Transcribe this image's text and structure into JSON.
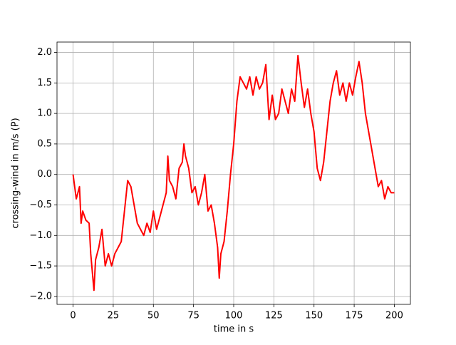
{
  "chart_data": {
    "type": "line",
    "xlabel": "time in s",
    "ylabel": "crossing-wind in m/s (P)",
    "x": [
      0,
      2,
      4,
      5,
      6,
      8,
      10,
      11,
      12,
      13,
      14,
      16,
      18,
      20,
      22,
      24,
      26,
      28,
      30,
      32,
      34,
      36,
      38,
      40,
      42,
      44,
      46,
      48,
      50,
      52,
      54,
      56,
      58,
      59,
      60,
      62,
      64,
      66,
      68,
      69,
      70,
      72,
      74,
      76,
      78,
      80,
      82,
      84,
      86,
      88,
      90,
      91,
      92,
      94,
      96,
      98,
      100,
      102,
      104,
      106,
      108,
      110,
      112,
      114,
      116,
      118,
      120,
      122,
      124,
      126,
      128,
      130,
      132,
      134,
      136,
      138,
      140,
      142,
      144,
      146,
      148,
      150,
      152,
      154,
      156,
      158,
      160,
      162,
      164,
      166,
      168,
      170,
      172,
      174,
      176,
      178,
      180,
      182,
      184,
      186,
      188,
      190,
      192,
      194,
      196,
      198,
      200
    ],
    "series": [
      {
        "name": "crossing-wind",
        "color": "#ff0000",
        "values": [
          0.0,
          -0.4,
          -0.2,
          -0.8,
          -0.6,
          -0.75,
          -0.8,
          -1.3,
          -1.6,
          -1.9,
          -1.4,
          -1.2,
          -0.9,
          -1.5,
          -1.3,
          -1.5,
          -1.3,
          -1.2,
          -1.1,
          -0.6,
          -0.1,
          -0.2,
          -0.5,
          -0.8,
          -0.9,
          -1.0,
          -0.8,
          -0.95,
          -0.6,
          -0.9,
          -0.7,
          -0.5,
          -0.3,
          0.3,
          -0.1,
          -0.2,
          -0.4,
          0.1,
          0.2,
          0.5,
          0.3,
          0.1,
          -0.3,
          -0.2,
          -0.5,
          -0.3,
          0.0,
          -0.6,
          -0.5,
          -0.8,
          -1.2,
          -1.7,
          -1.3,
          -1.1,
          -0.6,
          0.0,
          0.5,
          1.2,
          1.6,
          1.5,
          1.4,
          1.6,
          1.3,
          1.6,
          1.4,
          1.5,
          1.8,
          0.9,
          1.3,
          0.9,
          1.0,
          1.4,
          1.2,
          1.0,
          1.4,
          1.2,
          1.95,
          1.5,
          1.1,
          1.4,
          1.0,
          0.7,
          0.1,
          -0.1,
          0.2,
          0.7,
          1.2,
          1.5,
          1.7,
          1.3,
          1.5,
          1.2,
          1.5,
          1.3,
          1.6,
          1.85,
          1.5,
          1.0,
          0.7,
          0.4,
          0.1,
          -0.2,
          -0.1,
          -0.4,
          -0.2,
          -0.3,
          -0.3
        ]
      }
    ],
    "xlim": [
      -10,
      210
    ],
    "ylim": [
      -2.13,
      2.17
    ],
    "xticks": [
      0,
      25,
      50,
      75,
      100,
      125,
      150,
      175,
      200
    ],
    "yticks": [
      {
        "value": -2,
        "label": "−2.0"
      },
      {
        "value": -1.5,
        "label": "−1.5"
      },
      {
        "value": -1,
        "label": "−1.0"
      },
      {
        "value": -0.5,
        "label": "−0.5"
      },
      {
        "value": 0,
        "label": "0.0"
      },
      {
        "value": 0.5,
        "label": "0.5"
      },
      {
        "value": 1,
        "label": "1.0"
      },
      {
        "value": 1.5,
        "label": "1.5"
      },
      {
        "value": 2,
        "label": "2.0"
      }
    ],
    "grid": true
  }
}
